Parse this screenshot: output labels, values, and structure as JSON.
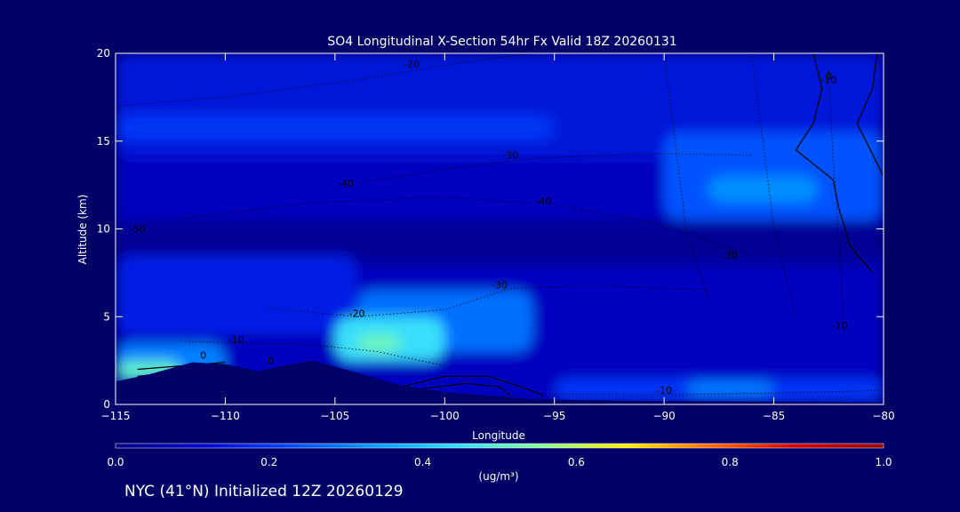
{
  "chart_data": {
    "type": "heatmap",
    "title": "SO4 Longitudinal X-Section 54hr  Fx Valid 18Z 20260131",
    "xlabel": "Longitude",
    "ylabel": "Altitude (km)",
    "xlim": [
      -115,
      -80
    ],
    "ylim": [
      0,
      20
    ],
    "x_ticks": [
      "-115",
      "-110",
      "-105",
      "-100",
      "-95",
      "-90",
      "-85",
      "-80"
    ],
    "y_ticks": [
      "0",
      "5",
      "10",
      "15",
      "20"
    ],
    "colorbar": {
      "label": "(ug/m³)",
      "min": 0.0,
      "max": 1.0,
      "ticks": [
        "0.0",
        "0.2",
        "0.4",
        "0.6",
        "0.8",
        "1.0"
      ],
      "colors": [
        "#000080",
        "#0000cc",
        "#0044ff",
        "#0099ff",
        "#33ddff",
        "#88ff99",
        "#ffee00",
        "#ff6600",
        "#cc0000",
        "#990000"
      ]
    },
    "terrain_km": [
      [
        -115,
        1.3
      ],
      [
        -113.5,
        1.7
      ],
      [
        -111.5,
        2.4
      ],
      [
        -110,
        2.3
      ],
      [
        -108.5,
        1.9
      ],
      [
        -107,
        2.3
      ],
      [
        -106,
        2.5
      ],
      [
        -104,
        1.8
      ],
      [
        -102,
        1.1
      ],
      [
        -100,
        0.7
      ],
      [
        -98,
        0.5
      ],
      [
        -96,
        0.3
      ],
      [
        -94,
        0.25
      ],
      [
        -90,
        0.2
      ],
      [
        -85,
        0.15
      ],
      [
        -80,
        0.1
      ]
    ],
    "bands": [
      {
        "lon": [
          -115,
          -80
        ],
        "alt": [
          0,
          20
        ],
        "value": 0.09
      },
      {
        "lon": [
          -115,
          -80
        ],
        "alt": [
          14,
          20
        ],
        "value": 0.14
      },
      {
        "lon": [
          -115,
          -95
        ],
        "alt": [
          15,
          16.5
        ],
        "value": 0.2
      },
      {
        "lon": [
          -90,
          -80
        ],
        "alt": [
          10.5,
          15.5
        ],
        "value": 0.24
      },
      {
        "lon": [
          -88,
          -83
        ],
        "alt": [
          11.5,
          13
        ],
        "value": 0.32
      },
      {
        "lon": [
          -115,
          -80
        ],
        "alt": [
          8,
          10.5
        ],
        "value": 0.03
      },
      {
        "lon": [
          -115,
          -104
        ],
        "alt": [
          4,
          8.5
        ],
        "value": 0.16
      },
      {
        "lon": [
          -104,
          -96
        ],
        "alt": [
          3,
          6.5
        ],
        "value": 0.28
      },
      {
        "lon": [
          -105,
          -100
        ],
        "alt": [
          2.5,
          5
        ],
        "value": 0.45
      },
      {
        "lon": [
          -104,
          -102
        ],
        "alt": [
          3,
          4
        ],
        "value": 0.52
      },
      {
        "lon": [
          -115,
          -110
        ],
        "alt": [
          1.5,
          3.5
        ],
        "value": 0.3
      },
      {
        "lon": [
          -115,
          -112
        ],
        "alt": [
          1.5,
          2.5
        ],
        "value": 0.5
      },
      {
        "lon": [
          -95,
          -80
        ],
        "alt": [
          0.2,
          1.5
        ],
        "value": 0.2
      },
      {
        "lon": [
          -89,
          -85
        ],
        "alt": [
          0.5,
          1.3
        ],
        "value": 0.3
      }
    ],
    "contour_labels": [
      {
        "text": "-20",
        "lon": -101.5,
        "alt": 19.2
      },
      {
        "text": "-10",
        "lon": -82.5,
        "alt": 18.3
      },
      {
        "text": "0",
        "lon": -82.5,
        "alt": 18.5
      },
      {
        "text": "-30",
        "lon": -97,
        "alt": 14
      },
      {
        "text": "-40",
        "lon": -104.5,
        "alt": 12.4
      },
      {
        "text": "-40",
        "lon": -95.5,
        "alt": 11.4
      },
      {
        "text": "-50",
        "lon": -114,
        "alt": 9.8
      },
      {
        "text": "-30",
        "lon": -87,
        "alt": 8.3
      },
      {
        "text": "-30",
        "lon": -97.5,
        "alt": 6.6
      },
      {
        "text": "-20",
        "lon": -104,
        "alt": 5.0
      },
      {
        "text": "-10",
        "lon": -109.5,
        "alt": 3.5
      },
      {
        "text": "-10",
        "lon": -82,
        "alt": 4.3
      },
      {
        "text": "0",
        "lon": -111,
        "alt": 2.6
      },
      {
        "text": "-0",
        "lon": -108,
        "alt": 2.3
      },
      {
        "text": "-10",
        "lon": -90,
        "alt": 0.6
      }
    ]
  },
  "footer": "NYC (41°N) Initialized 12Z 20260129"
}
